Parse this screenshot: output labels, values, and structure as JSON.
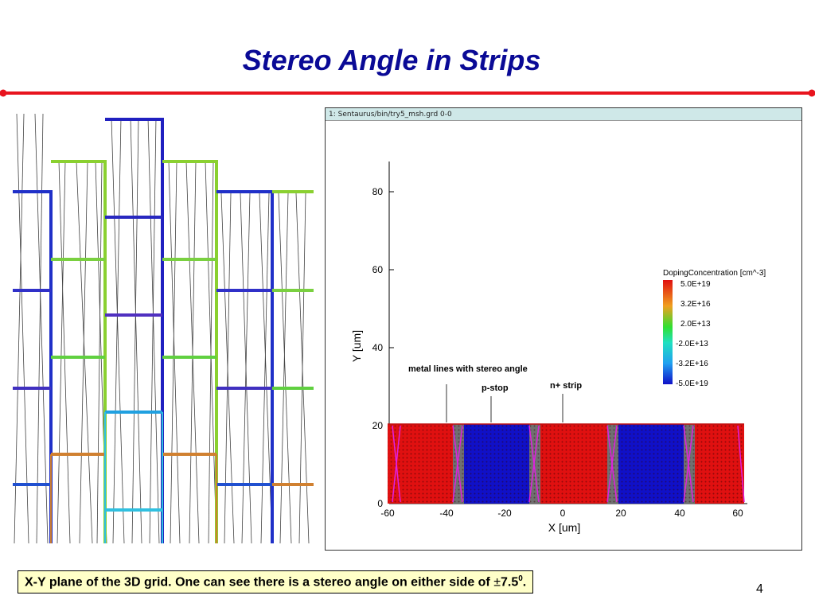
{
  "slide": {
    "title": "Stereo Angle in Strips",
    "caption_main": "X-Y plane of the 3D grid. One can see there is a stereo angle on either side of ",
    "caption_pm": "±",
    "caption_value": "7.5",
    "caption_sup": "0",
    "caption_end": ".",
    "page_number": "4"
  },
  "plot": {
    "window_title": "1: Sentaurus/bin/try5_msh.grd 0-0",
    "xlabel": "X [um]",
    "ylabel": "Y [um]",
    "x_ticks": [
      "-60",
      "-40",
      "-20",
      "0",
      "20",
      "40",
      "60"
    ],
    "y_ticks": [
      "0",
      "20",
      "40",
      "60",
      "80"
    ],
    "legend_title": "DopingConcentration [cm^-3]",
    "legend_labels": [
      "5.0E+19",
      "3.2E+16",
      "2.0E+13",
      "-2.0E+13",
      "-3.2E+16",
      "-5.0E+19"
    ],
    "annotations": {
      "metal": "metal lines with stereo angle",
      "pstop": "p-stop",
      "nstrip": "n+ strip"
    }
  },
  "colors": {
    "title": "#0a0a96",
    "rule": "#e8141e",
    "caption_bg": "#ffffc8",
    "doping_high": "#e01010",
    "doping_low": "#1010c8"
  }
}
